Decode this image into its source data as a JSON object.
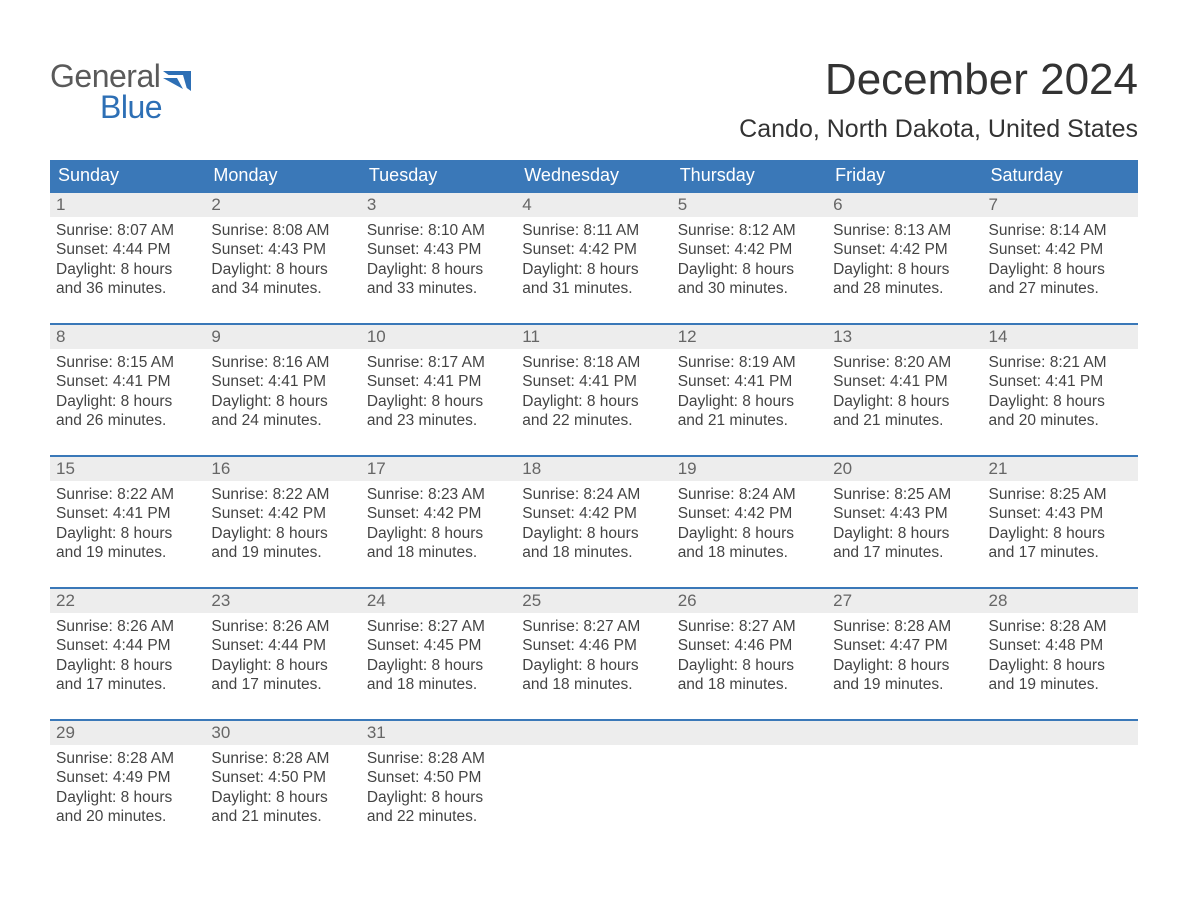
{
  "logo": {
    "text_general": "General",
    "text_blue": "Blue",
    "flag_color": "#2d6fb5"
  },
  "title": "December 2024",
  "location": "Cando, North Dakota, United States",
  "colors": {
    "header_bg": "#3a78b8",
    "header_text": "#ffffff",
    "daynum_bg": "#ededed",
    "daynum_text": "#666666",
    "body_text": "#444444",
    "week_border": "#3a78b8",
    "logo_gray": "#5a5a5a",
    "logo_blue": "#2d6fb5",
    "background": "#ffffff"
  },
  "typography": {
    "title_fontsize": 44,
    "location_fontsize": 25,
    "weekday_fontsize": 18,
    "daynum_fontsize": 17,
    "content_fontsize": 15.5,
    "logo_fontsize": 32
  },
  "weekdays": [
    "Sunday",
    "Monday",
    "Tuesday",
    "Wednesday",
    "Thursday",
    "Friday",
    "Saturday"
  ],
  "weeks": [
    [
      {
        "n": "1",
        "sunrise": "Sunrise: 8:07 AM",
        "sunset": "Sunset: 4:44 PM",
        "d1": "Daylight: 8 hours",
        "d2": "and 36 minutes."
      },
      {
        "n": "2",
        "sunrise": "Sunrise: 8:08 AM",
        "sunset": "Sunset: 4:43 PM",
        "d1": "Daylight: 8 hours",
        "d2": "and 34 minutes."
      },
      {
        "n": "3",
        "sunrise": "Sunrise: 8:10 AM",
        "sunset": "Sunset: 4:43 PM",
        "d1": "Daylight: 8 hours",
        "d2": "and 33 minutes."
      },
      {
        "n": "4",
        "sunrise": "Sunrise: 8:11 AM",
        "sunset": "Sunset: 4:42 PM",
        "d1": "Daylight: 8 hours",
        "d2": "and 31 minutes."
      },
      {
        "n": "5",
        "sunrise": "Sunrise: 8:12 AM",
        "sunset": "Sunset: 4:42 PM",
        "d1": "Daylight: 8 hours",
        "d2": "and 30 minutes."
      },
      {
        "n": "6",
        "sunrise": "Sunrise: 8:13 AM",
        "sunset": "Sunset: 4:42 PM",
        "d1": "Daylight: 8 hours",
        "d2": "and 28 minutes."
      },
      {
        "n": "7",
        "sunrise": "Sunrise: 8:14 AM",
        "sunset": "Sunset: 4:42 PM",
        "d1": "Daylight: 8 hours",
        "d2": "and 27 minutes."
      }
    ],
    [
      {
        "n": "8",
        "sunrise": "Sunrise: 8:15 AM",
        "sunset": "Sunset: 4:41 PM",
        "d1": "Daylight: 8 hours",
        "d2": "and 26 minutes."
      },
      {
        "n": "9",
        "sunrise": "Sunrise: 8:16 AM",
        "sunset": "Sunset: 4:41 PM",
        "d1": "Daylight: 8 hours",
        "d2": "and 24 minutes."
      },
      {
        "n": "10",
        "sunrise": "Sunrise: 8:17 AM",
        "sunset": "Sunset: 4:41 PM",
        "d1": "Daylight: 8 hours",
        "d2": "and 23 minutes."
      },
      {
        "n": "11",
        "sunrise": "Sunrise: 8:18 AM",
        "sunset": "Sunset: 4:41 PM",
        "d1": "Daylight: 8 hours",
        "d2": "and 22 minutes."
      },
      {
        "n": "12",
        "sunrise": "Sunrise: 8:19 AM",
        "sunset": "Sunset: 4:41 PM",
        "d1": "Daylight: 8 hours",
        "d2": "and 21 minutes."
      },
      {
        "n": "13",
        "sunrise": "Sunrise: 8:20 AM",
        "sunset": "Sunset: 4:41 PM",
        "d1": "Daylight: 8 hours",
        "d2": "and 21 minutes."
      },
      {
        "n": "14",
        "sunrise": "Sunrise: 8:21 AM",
        "sunset": "Sunset: 4:41 PM",
        "d1": "Daylight: 8 hours",
        "d2": "and 20 minutes."
      }
    ],
    [
      {
        "n": "15",
        "sunrise": "Sunrise: 8:22 AM",
        "sunset": "Sunset: 4:41 PM",
        "d1": "Daylight: 8 hours",
        "d2": "and 19 minutes."
      },
      {
        "n": "16",
        "sunrise": "Sunrise: 8:22 AM",
        "sunset": "Sunset: 4:42 PM",
        "d1": "Daylight: 8 hours",
        "d2": "and 19 minutes."
      },
      {
        "n": "17",
        "sunrise": "Sunrise: 8:23 AM",
        "sunset": "Sunset: 4:42 PM",
        "d1": "Daylight: 8 hours",
        "d2": "and 18 minutes."
      },
      {
        "n": "18",
        "sunrise": "Sunrise: 8:24 AM",
        "sunset": "Sunset: 4:42 PM",
        "d1": "Daylight: 8 hours",
        "d2": "and 18 minutes."
      },
      {
        "n": "19",
        "sunrise": "Sunrise: 8:24 AM",
        "sunset": "Sunset: 4:42 PM",
        "d1": "Daylight: 8 hours",
        "d2": "and 18 minutes."
      },
      {
        "n": "20",
        "sunrise": "Sunrise: 8:25 AM",
        "sunset": "Sunset: 4:43 PM",
        "d1": "Daylight: 8 hours",
        "d2": "and 17 minutes."
      },
      {
        "n": "21",
        "sunrise": "Sunrise: 8:25 AM",
        "sunset": "Sunset: 4:43 PM",
        "d1": "Daylight: 8 hours",
        "d2": "and 17 minutes."
      }
    ],
    [
      {
        "n": "22",
        "sunrise": "Sunrise: 8:26 AM",
        "sunset": "Sunset: 4:44 PM",
        "d1": "Daylight: 8 hours",
        "d2": "and 17 minutes."
      },
      {
        "n": "23",
        "sunrise": "Sunrise: 8:26 AM",
        "sunset": "Sunset: 4:44 PM",
        "d1": "Daylight: 8 hours",
        "d2": "and 17 minutes."
      },
      {
        "n": "24",
        "sunrise": "Sunrise: 8:27 AM",
        "sunset": "Sunset: 4:45 PM",
        "d1": "Daylight: 8 hours",
        "d2": "and 18 minutes."
      },
      {
        "n": "25",
        "sunrise": "Sunrise: 8:27 AM",
        "sunset": "Sunset: 4:46 PM",
        "d1": "Daylight: 8 hours",
        "d2": "and 18 minutes."
      },
      {
        "n": "26",
        "sunrise": "Sunrise: 8:27 AM",
        "sunset": "Sunset: 4:46 PM",
        "d1": "Daylight: 8 hours",
        "d2": "and 18 minutes."
      },
      {
        "n": "27",
        "sunrise": "Sunrise: 8:28 AM",
        "sunset": "Sunset: 4:47 PM",
        "d1": "Daylight: 8 hours",
        "d2": "and 19 minutes."
      },
      {
        "n": "28",
        "sunrise": "Sunrise: 8:28 AM",
        "sunset": "Sunset: 4:48 PM",
        "d1": "Daylight: 8 hours",
        "d2": "and 19 minutes."
      }
    ],
    [
      {
        "n": "29",
        "sunrise": "Sunrise: 8:28 AM",
        "sunset": "Sunset: 4:49 PM",
        "d1": "Daylight: 8 hours",
        "d2": "and 20 minutes."
      },
      {
        "n": "30",
        "sunrise": "Sunrise: 8:28 AM",
        "sunset": "Sunset: 4:50 PM",
        "d1": "Daylight: 8 hours",
        "d2": "and 21 minutes."
      },
      {
        "n": "31",
        "sunrise": "Sunrise: 8:28 AM",
        "sunset": "Sunset: 4:50 PM",
        "d1": "Daylight: 8 hours",
        "d2": "and 22 minutes."
      },
      null,
      null,
      null,
      null
    ]
  ]
}
